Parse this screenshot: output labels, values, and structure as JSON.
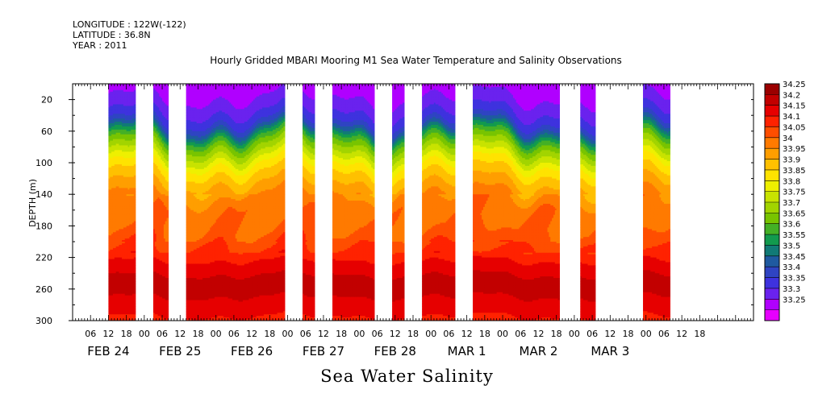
{
  "header": {
    "longitude": "LONGITUDE : 122W(-122)",
    "latitude": "LATITUDE : 36.8N",
    "year": "YEAR : 2011"
  },
  "chart_data": {
    "type": "heatmap",
    "title": "Hourly Gridded MBARI Mooring M1 Sea Water Temperature and Salinity Observations",
    "variable_label": "Sea Water Salinity",
    "xlabel": "",
    "ylabel": "DEPTH (m)",
    "x_range_hours_from_feb24_00": [
      0,
      228
    ],
    "ylim": [
      300,
      0
    ],
    "y_ticks": [
      20,
      60,
      100,
      140,
      180,
      220,
      260,
      300
    ],
    "x_hour_ticks": [
      "06",
      "12",
      "18",
      "00",
      "06",
      "12",
      "18",
      "00",
      "06",
      "12",
      "18",
      "00",
      "06",
      "12",
      "18",
      "00",
      "06",
      "12",
      "18",
      "00",
      "06",
      "12",
      "18",
      "00",
      "06",
      "12",
      "18",
      "00",
      "06",
      "12",
      "18",
      "00",
      "06",
      "12",
      "18"
    ],
    "date_labels": [
      "FEB 24",
      "FEB 25",
      "FEB 26",
      "FEB 27",
      "FEB 28",
      "MAR  1",
      "MAR  2",
      "MAR  3"
    ],
    "data_segments_hours": [
      [
        12,
        21
      ],
      [
        27,
        32
      ],
      [
        38,
        71
      ],
      [
        77,
        81
      ],
      [
        87,
        101
      ],
      [
        107,
        111
      ],
      [
        117,
        128
      ],
      [
        134,
        163
      ],
      [
        170,
        175
      ],
      [
        191,
        200
      ]
    ],
    "depth_profile": [
      {
        "depth": 10,
        "salinity": 33.28
      },
      {
        "depth": 30,
        "salinity": 33.33
      },
      {
        "depth": 45,
        "salinity": 33.38
      },
      {
        "depth": 55,
        "salinity": 33.46
      },
      {
        "depth": 65,
        "salinity": 33.58
      },
      {
        "depth": 75,
        "salinity": 33.67
      },
      {
        "depth": 90,
        "salinity": 33.77
      },
      {
        "depth": 105,
        "salinity": 33.87
      },
      {
        "depth": 120,
        "salinity": 33.93
      },
      {
        "depth": 135,
        "salinity": 33.98
      },
      {
        "depth": 150,
        "salinity": 34.03
      },
      {
        "depth": 180,
        "salinity": 34.04
      },
      {
        "depth": 210,
        "salinity": 34.1
      },
      {
        "depth": 230,
        "salinity": 34.17
      },
      {
        "depth": 255,
        "salinity": 34.23
      },
      {
        "depth": 280,
        "salinity": 34.18
      },
      {
        "depth": 300,
        "salinity": 34.14
      }
    ],
    "colorbar": {
      "labels": [
        "34.25",
        "34.2",
        "34.15",
        "34.1",
        "34.05",
        "34",
        "33.95",
        "33.9",
        "33.85",
        "33.8",
        "33.75",
        "33.7",
        "33.65",
        "33.6",
        "33.55",
        "33.5",
        "33.45",
        "33.4",
        "33.35",
        "33.3",
        "33.25"
      ],
      "colors": [
        "#9b0000",
        "#c20000",
        "#e60000",
        "#ff2200",
        "#ff4e00",
        "#ff7a00",
        "#ff9e00",
        "#ffc000",
        "#ffe300",
        "#eef000",
        "#c8e300",
        "#a2d400",
        "#78c400",
        "#44b026",
        "#129a4e",
        "#117a76",
        "#1f5aa0",
        "#2f44c2",
        "#3e32de",
        "#6a22ee",
        "#b000ff",
        "#e600ff"
      ]
    },
    "grid": false,
    "legend": "colorbar-right"
  }
}
